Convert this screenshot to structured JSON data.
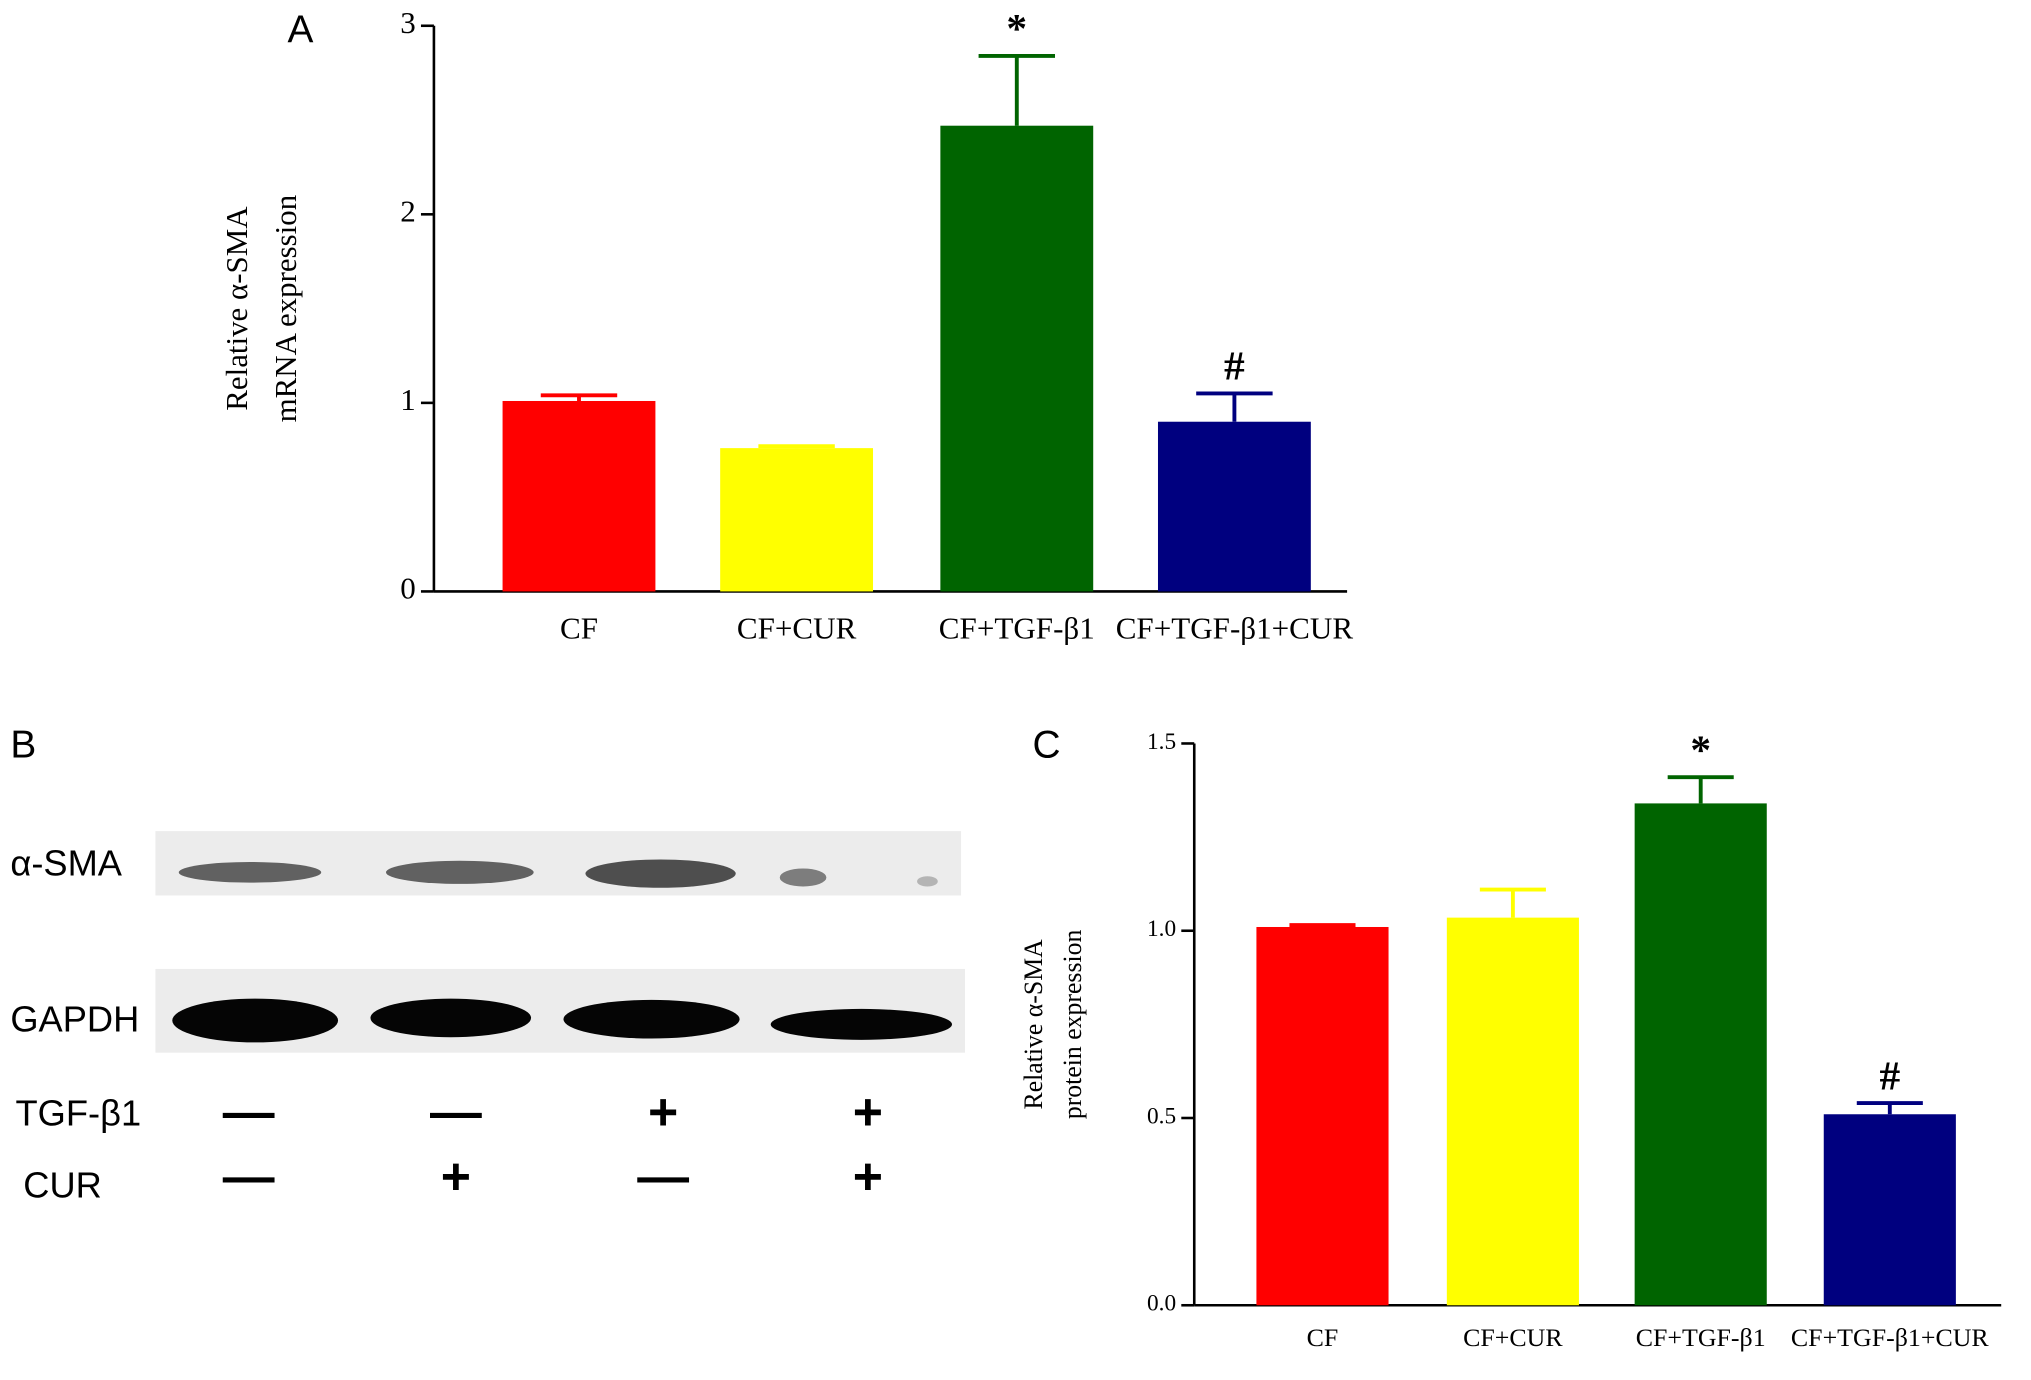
{
  "chart_data": [
    {
      "type": "bar",
      "panel": "A",
      "ylabel": [
        "Relative α-SMA",
        "mRNA expression"
      ],
      "categories": [
        "CF",
        "CF+CUR",
        "CF+TGF-β1",
        "CF+TGF-β1+CUR"
      ],
      "values": [
        1.01,
        0.76,
        2.47,
        0.9
      ],
      "errors": [
        0.03,
        0.01,
        0.37,
        0.15
      ],
      "colors": [
        "#ff0000",
        "#ffff00",
        "#006400",
        "#00007f"
      ],
      "markers": [
        null,
        null,
        "*",
        "#"
      ],
      "ylim": [
        0,
        3
      ],
      "yticks": [
        0,
        1,
        2,
        3
      ]
    },
    {
      "type": "bar",
      "panel": "C",
      "ylabel": [
        "Relative α-SMA",
        "protein expression"
      ],
      "categories": [
        "CF",
        "CF+CUR",
        "CF+TGF-β1",
        "CF+TGF-β1+CUR"
      ],
      "values": [
        1.01,
        1.035,
        1.34,
        0.51
      ],
      "errors": [
        0.005,
        0.075,
        0.07,
        0.03
      ],
      "colors": [
        "#ff0000",
        "#ffff00",
        "#006400",
        "#00007f"
      ],
      "markers": [
        null,
        null,
        "*",
        "#"
      ],
      "ylim": [
        0,
        1.5
      ],
      "yticks": [
        {
          "value": 0,
          "label": "0.0"
        },
        0.5,
        {
          "value": 1,
          "label": "1.0"
        },
        1.5
      ]
    }
  ],
  "blot": {
    "panel": "B",
    "rows": [
      "α-SMA",
      "GAPDH"
    ],
    "treatments": [
      {
        "name": "TGF-β1",
        "signs": [
          "—",
          "—",
          "+",
          "+"
        ]
      },
      {
        "name": "CUR",
        "signs": [
          "—",
          "+",
          "—",
          "+"
        ]
      }
    ]
  }
}
